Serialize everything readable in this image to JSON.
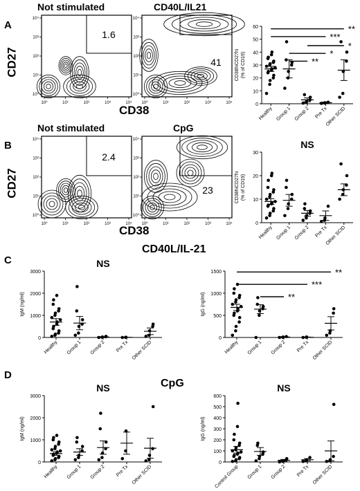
{
  "panels": [
    {
      "letter": "A",
      "flow_plots": [
        {
          "title": "Not stimulated",
          "gate_value": "1.6"
        },
        {
          "title": "CD40L/IL21",
          "gate_value": "41"
        }
      ],
      "flow_xlabel": "CD38",
      "flow_ylabel": "CD27"
    },
    {
      "letter": "B",
      "flow_plots": [
        {
          "title": "Not stimulated",
          "gate_value": "2.4"
        },
        {
          "title": "CpG",
          "gate_value": "23"
        }
      ],
      "flow_xlabel": "CD38",
      "flow_ylabel": "CD27"
    },
    {
      "letter": "C",
      "header": "CD40L/IL-21"
    },
    {
      "letter": "D",
      "header": "CpG"
    }
  ],
  "flow_tick_labels": [
    "10⁰",
    "10¹",
    "10²",
    "10³",
    "10⁴"
  ],
  "chart_data": [
    {
      "id": "A-right",
      "type": "scatter",
      "title": "",
      "xlabel": "",
      "ylabel": "CD38hiCD27hi\n(% of CD19)",
      "ylim": [
        0,
        60
      ],
      "yticks": [
        0,
        10,
        20,
        30,
        40,
        50,
        60
      ],
      "categories": [
        "Healthy",
        "Group 1",
        "Group 2",
        "Pre Tx",
        "Other SCID"
      ],
      "points": [
        [
          8,
          15,
          18,
          20,
          22,
          24,
          25,
          26,
          27,
          28,
          29,
          30,
          31,
          32,
          33,
          35,
          36,
          38,
          40
        ],
        [
          12,
          20,
          25,
          30,
          32,
          34,
          48
        ],
        [
          0.5,
          1,
          2,
          3,
          5,
          7
        ],
        [
          0.3,
          0.5,
          0.8,
          1.2
        ],
        [
          5,
          8,
          25,
          33,
          40,
          48
        ]
      ],
      "means": [
        27,
        27,
        3,
        0.8,
        26
      ],
      "errors": [
        2,
        7,
        1.5,
        0.5,
        8
      ],
      "annotations": [
        {
          "text": "**",
          "from": 0,
          "to": 4,
          "y": 58
        },
        {
          "text": "***",
          "from": 0,
          "to": 3,
          "y": 52
        },
        {
          "text": "*",
          "from": 2,
          "to": 4,
          "y": 45
        },
        {
          "text": "*",
          "from": 1,
          "to": 3,
          "y": 39
        },
        {
          "text": "**",
          "from": 1,
          "to": 2,
          "y": 33
        }
      ]
    },
    {
      "id": "B-right",
      "type": "scatter",
      "title": "NS",
      "xlabel": "",
      "ylabel": "CD38hiCD27hi\n(% of CD19)",
      "ylim": [
        0,
        30
      ],
      "yticks": [
        0,
        10,
        20,
        30
      ],
      "categories": [
        "Healthy",
        "Group 1",
        "Group 2",
        "Pre Tx",
        "Other SCID"
      ],
      "points": [
        [
          2,
          3,
          4,
          5,
          6,
          7,
          7.5,
          8,
          8.5,
          9,
          10,
          11,
          12,
          13,
          14,
          15,
          18,
          20,
          21
        ],
        [
          3,
          6,
          8,
          10,
          12,
          15,
          18
        ],
        [
          1,
          2,
          3,
          4,
          5,
          6,
          8
        ],
        [
          0.5,
          1,
          2,
          7
        ],
        [
          10,
          12,
          14,
          16,
          20,
          25
        ]
      ],
      "means": [
        9,
        9.5,
        4,
        3,
        14
      ],
      "errors": [
        1.2,
        2.5,
        1.2,
        2,
        2.5
      ],
      "annotations": []
    },
    {
      "id": "C-left",
      "type": "scatter",
      "title": "NS",
      "xlabel": "",
      "ylabel": "IgM (ng/ml)",
      "ylim": [
        0,
        3000
      ],
      "yticks": [
        0,
        1000,
        2000,
        3000
      ],
      "categories": [
        "Healthy",
        "Group 1",
        "Group 2",
        "Pre Tx",
        "Other SCID"
      ],
      "points": [
        [
          50,
          100,
          150,
          200,
          300,
          400,
          500,
          600,
          700,
          800,
          900,
          1000,
          1100,
          1200,
          1300,
          1500,
          1700,
          1900
        ],
        [
          100,
          200,
          500,
          600,
          800,
          1200,
          2300
        ],
        [
          0,
          10,
          20,
          30,
          50
        ],
        [
          0,
          5,
          10
        ],
        [
          50,
          100,
          300,
          500,
          600
        ]
      ],
      "means": [
        700,
        650,
        20,
        5,
        280
      ],
      "errors": [
        150,
        300,
        15,
        5,
        150
      ],
      "annotations": []
    },
    {
      "id": "C-right",
      "type": "scatter",
      "title": "",
      "xlabel": "",
      "ylabel": "IgG (ng/ml)",
      "ylim": [
        0,
        1500
      ],
      "yticks": [
        0,
        500,
        1000,
        1500
      ],
      "categories": [
        "Healthy",
        "Group 1",
        "Group 2",
        "Pre Tx",
        "Other SCID"
      ],
      "points": [
        [
          50,
          150,
          250,
          350,
          450,
          500,
          550,
          600,
          650,
          700,
          750,
          800,
          850,
          900,
          950,
          1000,
          1100,
          1200
        ],
        [
          0,
          500,
          600,
          650,
          700,
          750,
          900
        ],
        [
          0,
          5,
          10,
          20
        ],
        [
          0,
          5,
          10
        ],
        [
          50,
          100,
          150,
          550,
          650
        ]
      ],
      "means": [
        680,
        640,
        10,
        5,
        320
      ],
      "errors": [
        70,
        100,
        8,
        5,
        150
      ],
      "annotations": [
        {
          "text": "**",
          "from": 0,
          "to": 4,
          "y": 1480
        },
        {
          "text": "***",
          "from": 0,
          "to": 3,
          "y": 1200
        },
        {
          "text": "**",
          "from": 1,
          "to": 2,
          "y": 920
        }
      ]
    },
    {
      "id": "D-left",
      "type": "scatter",
      "title": "NS",
      "xlabel": "",
      "ylabel": "IgM (ng/ml)",
      "ylim": [
        0,
        3000
      ],
      "yticks": [
        0,
        1000,
        2000,
        3000
      ],
      "categories": [
        "Healthy",
        "Group 1",
        "Group 2",
        "Pre Tx",
        "Other SCID"
      ],
      "points": [
        [
          50,
          100,
          150,
          200,
          250,
          300,
          350,
          400,
          450,
          500,
          550,
          600,
          700,
          800,
          900,
          1000,
          1100,
          1200
        ],
        [
          100,
          200,
          300,
          500,
          700,
          900,
          1100
        ],
        [
          100,
          200,
          400,
          600,
          900,
          1500,
          2200
        ],
        [
          150,
          500,
          1400
        ],
        [
          50,
          100,
          300,
          600,
          2500
        ]
      ],
      "means": [
        380,
        450,
        650,
        850,
        620
      ],
      "errors": [
        80,
        150,
        300,
        500,
        450
      ],
      "annotations": []
    },
    {
      "id": "D-right",
      "type": "scatter",
      "title": "NS",
      "xlabel": "",
      "ylabel": "IgG (ng/ml)",
      "ylim": [
        0,
        600
      ],
      "yticks": [
        0,
        100,
        200,
        300,
        400,
        500,
        600
      ],
      "categories": [
        "Control Group",
        "Group 1",
        "Group 2",
        "Pre Tx",
        "Other SCID"
      ],
      "points": [
        [
          5,
          10,
          20,
          30,
          40,
          50,
          60,
          70,
          80,
          90,
          100,
          110,
          130,
          150,
          170,
          200,
          250,
          320,
          530
        ],
        [
          10,
          30,
          50,
          70,
          90,
          150,
          170
        ],
        [
          0,
          5,
          10,
          20,
          30
        ],
        [
          5,
          10,
          20,
          40
        ],
        [
          5,
          10,
          20,
          50,
          520
        ]
      ],
      "means": [
        110,
        95,
        15,
        20,
        100
      ],
      "errors": [
        30,
        35,
        8,
        10,
        90
      ],
      "annotations": []
    }
  ]
}
